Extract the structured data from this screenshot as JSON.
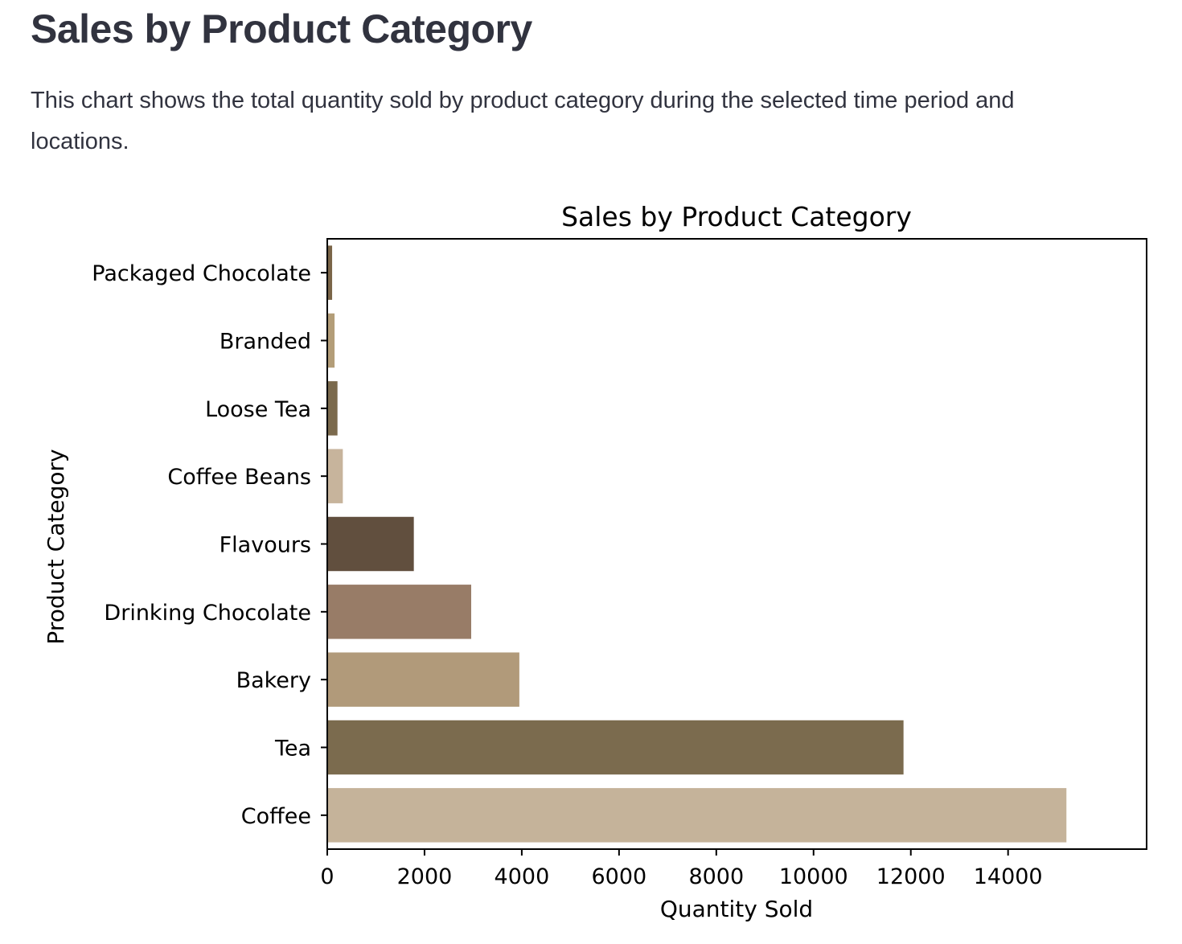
{
  "page": {
    "title": "Sales by Product Category",
    "description": "This chart shows the total quantity sold by product category during the selected time period and locations."
  },
  "chart_data": {
    "type": "bar",
    "orientation": "horizontal",
    "title": "Sales by Product Category",
    "xlabel": "Quantity Sold",
    "ylabel": "Product Category",
    "categories": [
      "Packaged Chocolate",
      "Branded",
      "Loose Tea",
      "Coffee Beans",
      "Flavours",
      "Drinking Chocolate",
      "Bakery",
      "Tea",
      "Coffee"
    ],
    "values": [
      100,
      150,
      210,
      320,
      1780,
      2960,
      3950,
      11850,
      15200
    ],
    "colors": [
      "#7a6548",
      "#b39d78",
      "#7b6a4d",
      "#c7b49c",
      "#614f3e",
      "#987c67",
      "#b19a7a",
      "#7b6b4e",
      "#c5b39a"
    ],
    "xlim": [
      0,
      16000
    ],
    "xticks": [
      0,
      2000,
      4000,
      6000,
      8000,
      10000,
      12000,
      14000
    ],
    "grid": false,
    "legend": "none"
  }
}
